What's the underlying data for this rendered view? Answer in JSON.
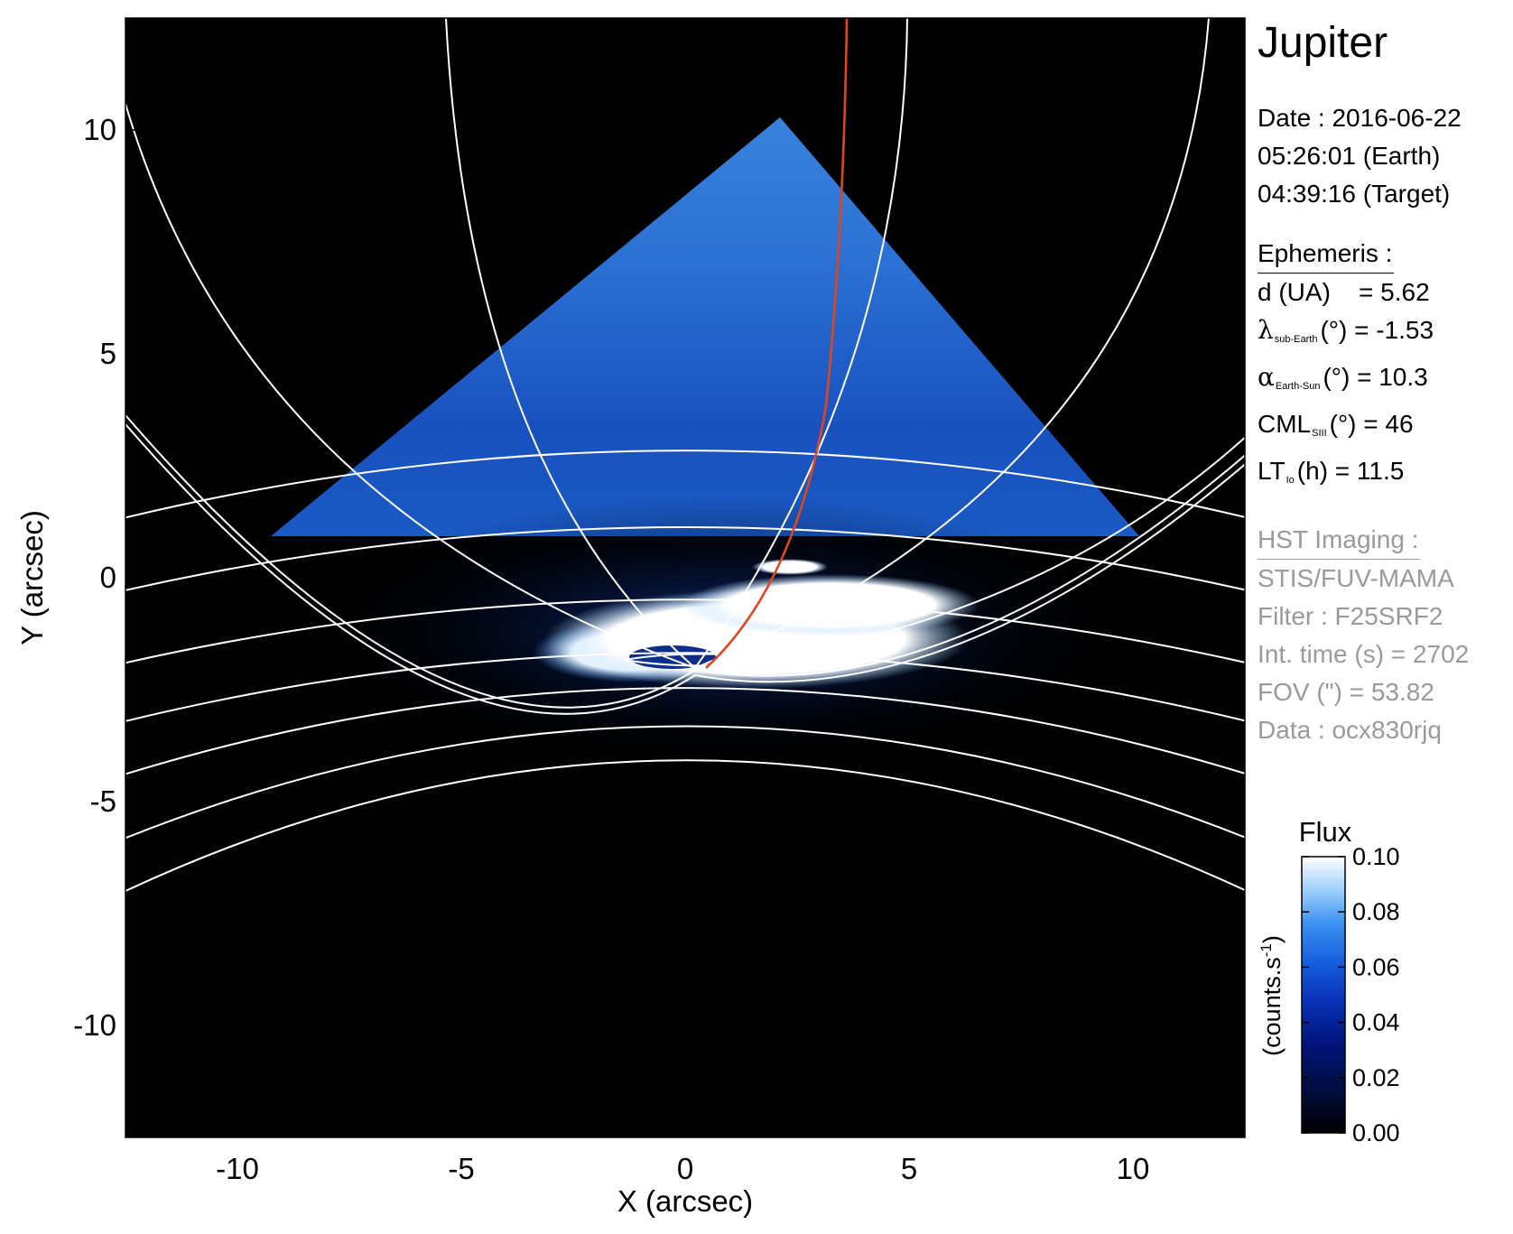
{
  "chart_data": {
    "type": "heatmap",
    "title": "Jupiter",
    "xlabel": "X (arcsec)",
    "ylabel": "Y (arcsec)",
    "xlim": [
      -12.5,
      12.5
    ],
    "ylim": [
      -12.5,
      12.5
    ],
    "x_ticks": [
      -10,
      -5,
      0,
      5,
      10
    ],
    "y_ticks": [
      10,
      5,
      0,
      -5,
      -10
    ],
    "colorbar": {
      "label": "Flux",
      "unit_prefix": "(counts.s",
      "unit_exp": "-1",
      "unit_suffix": ")",
      "range": [
        0.0,
        0.1
      ],
      "ticks": [
        "0.10",
        "0.08",
        "0.06",
        "0.04",
        "0.02",
        "0.00"
      ]
    },
    "info": {
      "date_line": "Date : 2016-06-22",
      "earth_time": "05:26:01 (Earth)",
      "target_time": "04:39:16 (Target)",
      "ephemeris_heading": "Ephemeris :",
      "d_label": "d (UA)",
      "d_value": "= 5.62",
      "lambda_symbol": "λ",
      "lambda_sub": "sub-Earth",
      "lambda_value": "(°) = -1.53",
      "alpha_symbol": "α",
      "alpha_sub": "Earth-Sun",
      "alpha_value": "(°) = 10.3",
      "cml_label": "CML",
      "cml_sub": "SIII",
      "cml_value": "(°) = 46",
      "lt_label": "LT",
      "lt_sub": "Io",
      "lt_value": "(h) = 11.5",
      "hst_heading": "HST Imaging :",
      "instrument": "STIS/FUV-MAMA",
      "filter": "Filter : F25SRF2",
      "int_time": "Int. time (s) = 2702",
      "fov": "FOV (\") = 53.82",
      "dataset": "Data : ocx830rjq"
    }
  },
  "colors": {
    "background": "#000000",
    "grid": "#ffffff",
    "io_footpath": "#e0461c",
    "colormap": [
      "#000000",
      "#000c3a",
      "#00147a",
      "#0832b8",
      "#1560de",
      "#3c92f2",
      "#9fd0fa",
      "#ffffff"
    ]
  }
}
